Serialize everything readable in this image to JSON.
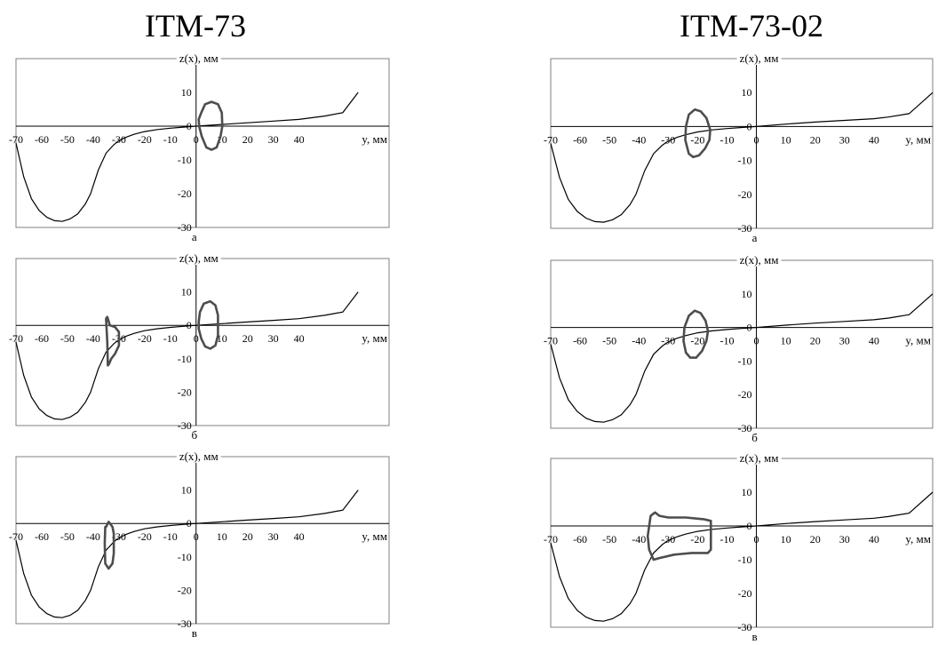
{
  "titles": {
    "left": "ITM-73",
    "right": "ITM-73-02"
  },
  "axis_labels": {
    "z": "z(x), мм",
    "y": "y, мм"
  },
  "colors": {
    "curve": "#000000",
    "contour": "#4d4d4d",
    "frame": "#808080",
    "axis": "#000000"
  },
  "chart_data": [
    {
      "type": "line",
      "column": "left",
      "panel_label": "а",
      "xlabel": "y, мм",
      "ylabel": "z(x), мм",
      "xlim": [
        -70,
        75
      ],
      "ylim": [
        -30,
        20
      ],
      "xticks": [
        -70,
        -60,
        -50,
        -40,
        -30,
        -20,
        -10,
        0,
        10,
        20,
        30,
        40
      ],
      "yticks": [
        10,
        0,
        -10,
        -20,
        -30
      ],
      "series": [
        {
          "x": [
            -70,
            -67,
            -64,
            -61,
            -58,
            -55,
            -52,
            -49,
            -46,
            -43,
            -41,
            -38,
            -35,
            -32,
            -30,
            -27,
            -24,
            -20,
            -15,
            -10,
            -5,
            0,
            10,
            20,
            30,
            40,
            50,
            57,
            63
          ],
          "values": [
            -5,
            -15,
            -21.5,
            -25,
            -27,
            -28,
            -28.2,
            -27.5,
            -26,
            -23,
            -20,
            -13,
            -8,
            -5.5,
            -4.3,
            -3.2,
            -2.4,
            -1.6,
            -1,
            -0.6,
            -0.3,
            0,
            0.5,
            1,
            1.5,
            2,
            3,
            4,
            10
          ]
        }
      ],
      "contours": [
        {
          "x": [
            2,
            3.5,
            6,
            8.5,
            10,
            10.2,
            9.5,
            8,
            6,
            4,
            2.2,
            1.2,
            1,
            2
          ],
          "values": [
            4,
            6.5,
            7.2,
            6.5,
            4,
            0,
            -3,
            -6.3,
            -7,
            -6.3,
            -3,
            0,
            2,
            4
          ]
        }
      ]
    },
    {
      "type": "line",
      "column": "left",
      "panel_label": "б",
      "xlabel": "y, мм",
      "ylabel": "z(x), мм",
      "xlim": [
        -70,
        75
      ],
      "ylim": [
        -30,
        20
      ],
      "xticks": [
        -70,
        -60,
        -50,
        -40,
        -30,
        -20,
        -10,
        0,
        10,
        20,
        30,
        40
      ],
      "yticks": [
        10,
        0,
        -10,
        -20,
        -30
      ],
      "series": [
        {
          "x": [
            -70,
            -67,
            -64,
            -61,
            -58,
            -55,
            -52,
            -49,
            -46,
            -43,
            -41,
            -38,
            -35,
            -32,
            -30,
            -27,
            -24,
            -20,
            -15,
            -10,
            -5,
            0,
            10,
            20,
            30,
            40,
            50,
            57,
            63
          ],
          "values": [
            -5,
            -15,
            -21.5,
            -25,
            -27,
            -28,
            -28.2,
            -27.5,
            -26,
            -23,
            -20,
            -13,
            -8,
            -5.5,
            -4.3,
            -3.2,
            -2.4,
            -1.6,
            -1,
            -0.6,
            -0.3,
            0,
            0.5,
            1,
            1.5,
            2,
            3,
            4,
            10
          ]
        }
      ],
      "contours": [
        {
          "x": [
            1.5,
            3,
            5.5,
            7.5,
            8.5,
            8.5,
            7.5,
            5.5,
            3.5,
            2,
            1,
            1,
            1.5
          ],
          "values": [
            4,
            6.5,
            7.2,
            6,
            3,
            -3,
            -6,
            -7,
            -6.3,
            -4,
            -1,
            1,
            4
          ]
        },
        {
          "x": [
            -35,
            -34.5,
            -33.5,
            -31.5,
            -30,
            -30,
            -31.5,
            -33,
            -33.8,
            -34.3,
            -34.5,
            -35
          ],
          "values": [
            2,
            2.5,
            0,
            -0.5,
            -2,
            -6,
            -8.5,
            -10,
            -11.5,
            -12,
            -5,
            2
          ]
        }
      ]
    },
    {
      "type": "line",
      "column": "left",
      "panel_label": "в",
      "xlabel": "y, мм",
      "ylabel": "z(x), мм",
      "xlim": [
        -70,
        75
      ],
      "ylim": [
        -30,
        20
      ],
      "xticks": [
        -70,
        -60,
        -50,
        -40,
        -30,
        -20,
        -10,
        0,
        10,
        20,
        30,
        40
      ],
      "yticks": [
        10,
        0,
        -10,
        -20,
        -30
      ],
      "series": [
        {
          "x": [
            -70,
            -67,
            -64,
            -61,
            -58,
            -55,
            -52,
            -49,
            -46,
            -43,
            -41,
            -38,
            -35,
            -32,
            -30,
            -27,
            -24,
            -20,
            -15,
            -10,
            -5,
            0,
            10,
            20,
            30,
            40,
            50,
            57,
            63
          ],
          "values": [
            -5,
            -15,
            -21.5,
            -25,
            -27,
            -28,
            -28.2,
            -27.5,
            -26,
            -23,
            -20,
            -13,
            -8,
            -5.5,
            -4.3,
            -3.2,
            -2.4,
            -1.6,
            -1,
            -0.6,
            -0.3,
            0,
            0.5,
            1,
            1.5,
            2,
            3,
            4,
            10
          ]
        }
      ],
      "contours": [
        {
          "x": [
            -35,
            -34,
            -32.5,
            -32,
            -32,
            -32.5,
            -34,
            -35.3,
            -35.5,
            -35.3,
            -35
          ],
          "values": [
            -1,
            0.5,
            -1,
            -3,
            -9,
            -12,
            -13.5,
            -12,
            -6,
            -1,
            -1
          ]
        }
      ]
    },
    {
      "type": "line",
      "column": "right",
      "panel_label": "а",
      "xlabel": "y, мм",
      "ylabel": "z(x), мм",
      "xlim": [
        -70,
        60
      ],
      "ylim": [
        -30,
        20
      ],
      "xticks": [
        -70,
        -60,
        -50,
        -40,
        -30,
        -20,
        -10,
        0,
        10,
        20,
        30,
        40
      ],
      "yticks": [
        10,
        0,
        -10,
        -20,
        -30
      ],
      "series": [
        {
          "x": [
            -70,
            -67,
            -64,
            -61,
            -58,
            -55,
            -52,
            -49,
            -46,
            -43,
            -41,
            -38,
            -35,
            -32,
            -30,
            -27,
            -24,
            -20,
            -15,
            -10,
            -5,
            0,
            10,
            20,
            30,
            40,
            45,
            52,
            60
          ],
          "values": [
            -5,
            -15,
            -21.5,
            -25,
            -27,
            -28,
            -28.2,
            -27.5,
            -26,
            -23,
            -20,
            -13,
            -8,
            -5.5,
            -4.3,
            -3.2,
            -2.4,
            -1.6,
            -1,
            -0.6,
            -0.3,
            0,
            0.7,
            1.3,
            1.8,
            2.3,
            2.8,
            3.8,
            10
          ]
        }
      ],
      "contours": [
        {
          "x": [
            -21,
            -19,
            -17,
            -15.7,
            -16,
            -17.5,
            -19.5,
            -21.5,
            -23,
            -24.2,
            -24,
            -23,
            -21
          ],
          "values": [
            5,
            4.5,
            2.5,
            -1,
            -4,
            -6.5,
            -8.5,
            -9,
            -8,
            -4,
            0,
            3.5,
            5
          ]
        }
      ]
    },
    {
      "type": "line",
      "column": "right",
      "panel_label": "б",
      "xlabel": "y, мм",
      "ylabel": "z(x), мм",
      "xlim": [
        -70,
        60
      ],
      "ylim": [
        -30,
        20
      ],
      "xticks": [
        -70,
        -60,
        -50,
        -40,
        -30,
        -20,
        -10,
        0,
        10,
        20,
        30,
        40
      ],
      "yticks": [
        10,
        0,
        -10,
        -20,
        -30
      ],
      "series": [
        {
          "x": [
            -70,
            -67,
            -64,
            -61,
            -58,
            -55,
            -52,
            -49,
            -46,
            -43,
            -41,
            -38,
            -35,
            -32,
            -30,
            -27,
            -24,
            -20,
            -15,
            -10,
            -5,
            0,
            10,
            20,
            30,
            40,
            45,
            52,
            60
          ],
          "values": [
            -5,
            -15,
            -21.5,
            -25,
            -27,
            -28,
            -28.2,
            -27.5,
            -26,
            -23,
            -20,
            -13,
            -8,
            -5.5,
            -4.3,
            -3.2,
            -2.4,
            -1.6,
            -1,
            -0.6,
            -0.3,
            0,
            0.7,
            1.3,
            1.8,
            2.3,
            2.8,
            3.8,
            10
          ]
        }
      ],
      "contours": [
        {
          "x": [
            -21,
            -19,
            -17.3,
            -16.5,
            -17,
            -18.5,
            -20.5,
            -22.5,
            -24,
            -24.8,
            -24.5,
            -23,
            -21
          ],
          "values": [
            5,
            4.3,
            2,
            -1,
            -4,
            -7,
            -9,
            -9,
            -7.5,
            -4,
            0,
            3.5,
            5
          ]
        }
      ]
    },
    {
      "type": "line",
      "column": "right",
      "panel_label": "в",
      "xlabel": "y, мм",
      "ylabel": "z(x), мм",
      "xlim": [
        -70,
        60
      ],
      "ylim": [
        -30,
        20
      ],
      "xticks": [
        -70,
        -60,
        -50,
        -40,
        -30,
        -20,
        -10,
        0,
        10,
        20,
        30,
        40
      ],
      "yticks": [
        10,
        0,
        -10,
        -20,
        -30
      ],
      "series": [
        {
          "x": [
            -70,
            -67,
            -64,
            -61,
            -58,
            -55,
            -52,
            -49,
            -46,
            -43,
            -41,
            -38,
            -35,
            -32,
            -30,
            -27,
            -24,
            -20,
            -15,
            -10,
            -5,
            0,
            10,
            20,
            30,
            40,
            45,
            52,
            60
          ],
          "values": [
            -5,
            -15,
            -21.5,
            -25,
            -27,
            -28,
            -28.2,
            -27.5,
            -26,
            -23,
            -20,
            -13,
            -8,
            -5.5,
            -4.3,
            -3.2,
            -2.4,
            -1.6,
            -1,
            -0.6,
            -0.3,
            0,
            0.7,
            1.3,
            1.8,
            2.3,
            2.8,
            3.8,
            10
          ]
        }
      ],
      "contours": [
        {
          "x": [
            -36,
            -34.5,
            -33,
            -30,
            -24,
            -18,
            -15.5,
            -15.5,
            -16.5,
            -22,
            -28,
            -33,
            -35,
            -36.5,
            -37,
            -36
          ],
          "values": [
            3,
            4,
            3,
            2.5,
            2.5,
            2,
            1.5,
            -7,
            -8,
            -8,
            -8.5,
            -9.5,
            -10,
            -7,
            -3,
            3
          ]
        }
      ]
    }
  ]
}
